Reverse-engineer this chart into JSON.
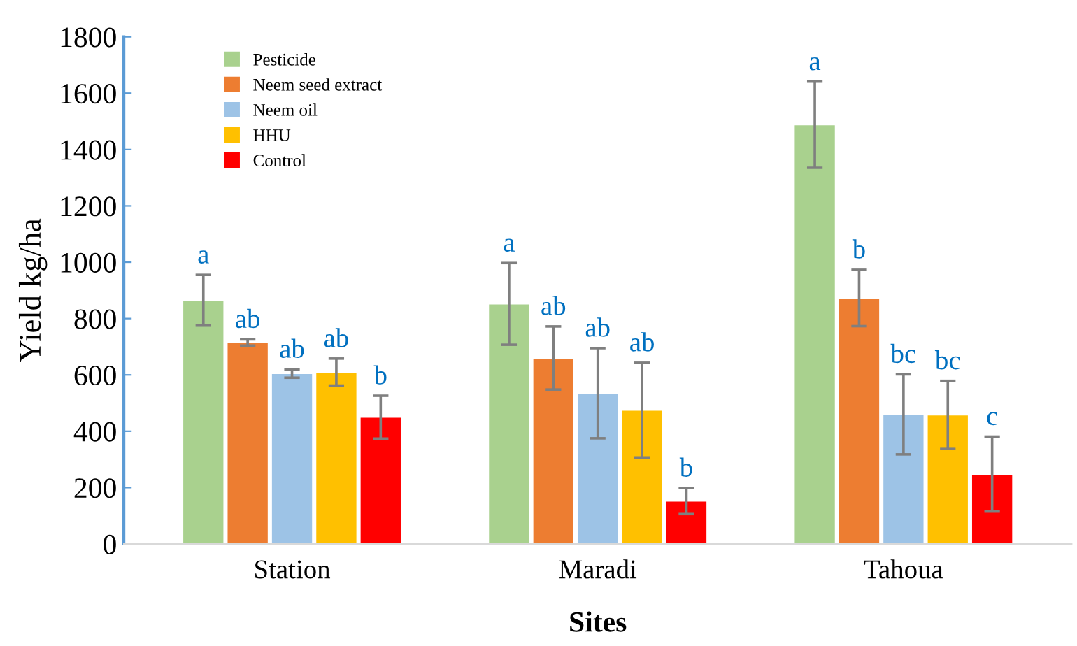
{
  "chart_data": {
    "type": "bar",
    "xlabel": "Sites",
    "ylabel": "Yield kg/ha",
    "categories": [
      "Station",
      "Maradi",
      "Tahoua"
    ],
    "series": [
      {
        "name": "Pesticide",
        "color": "#a9d18e",
        "values": [
          865,
          852,
          1488
        ],
        "errors": [
          90,
          145,
          153
        ],
        "value_labels": [
          "a",
          "a",
          "a"
        ]
      },
      {
        "name": "Neem seed extract",
        "color": "#ed7d31",
        "values": [
          715,
          660,
          873
        ],
        "errors": [
          11,
          112,
          100
        ],
        "value_labels": [
          "ab",
          "ab",
          "b"
        ]
      },
      {
        "name": "Neem oil",
        "color": "#9dc3e6",
        "values": [
          605,
          535,
          460
        ],
        "errors": [
          15,
          160,
          142
        ],
        "value_labels": [
          "ab",
          "ab",
          "bc"
        ]
      },
      {
        "name": "HHU",
        "color": "#ffc000",
        "values": [
          610,
          475,
          458
        ],
        "errors": [
          48,
          168,
          121
        ],
        "value_labels": [
          "ab",
          "ab",
          "bc"
        ]
      },
      {
        "name": "Control",
        "color": "#ff0000",
        "values": [
          450,
          152,
          248
        ],
        "errors": [
          76,
          46,
          133
        ],
        "value_labels": [
          "b",
          "b",
          "c"
        ]
      }
    ],
    "ylim": [
      0,
      1800
    ],
    "yticks": [
      0,
      200,
      400,
      600,
      800,
      1000,
      1200,
      1400,
      1600,
      1800
    ],
    "grid": false,
    "legend": "top left"
  }
}
